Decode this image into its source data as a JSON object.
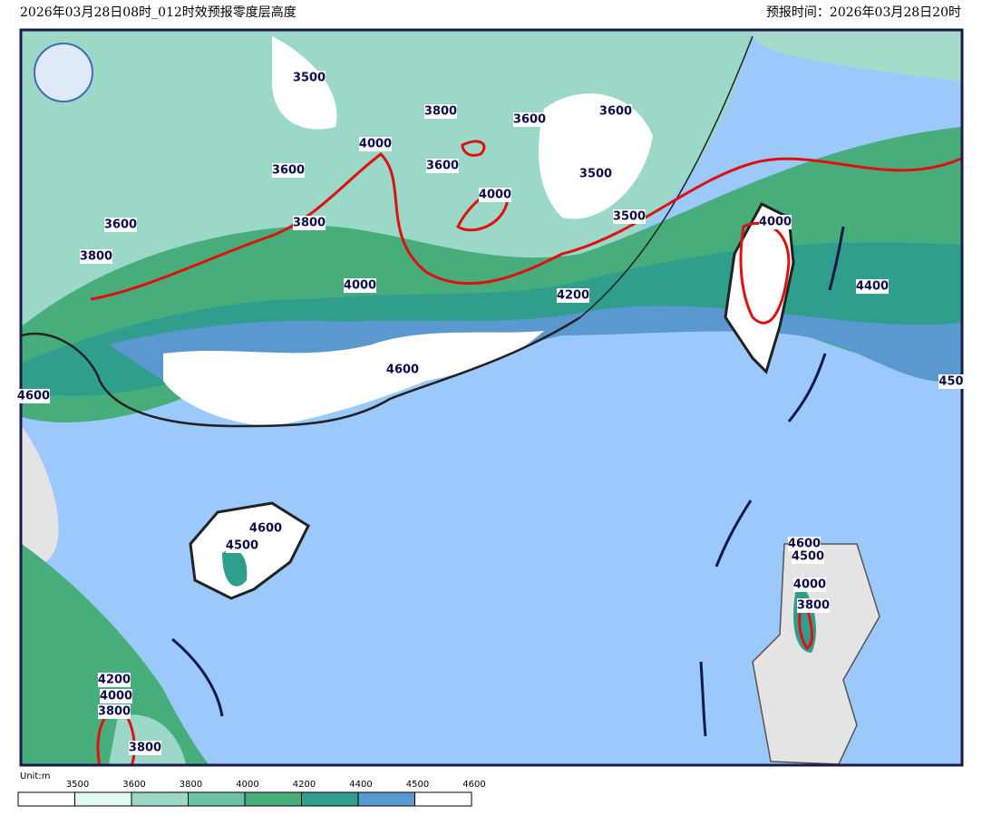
{
  "header": {
    "title": "2026年03月28日08时_012时效预报零度层高度",
    "forecast_time": "预报时间：2026年03月28日20时"
  },
  "contour_labels": [
    "3500",
    "3800",
    "3600",
    "3600",
    "4000",
    "3600",
    "3600",
    "3500",
    "4000",
    "3800",
    "3600",
    "3500",
    "4000",
    "3800",
    "4000",
    "4200",
    "4400",
    "4600",
    "4600",
    "450",
    "4600",
    "4500",
    "4600",
    "4500",
    "4000",
    "3800",
    "4200",
    "4000",
    "3800",
    "3800"
  ],
  "legend": {
    "unit": "Unit:m",
    "ticks": [
      "3500",
      "3600",
      "3800",
      "4000",
      "4200",
      "4400",
      "4500",
      "4600"
    ]
  }
}
